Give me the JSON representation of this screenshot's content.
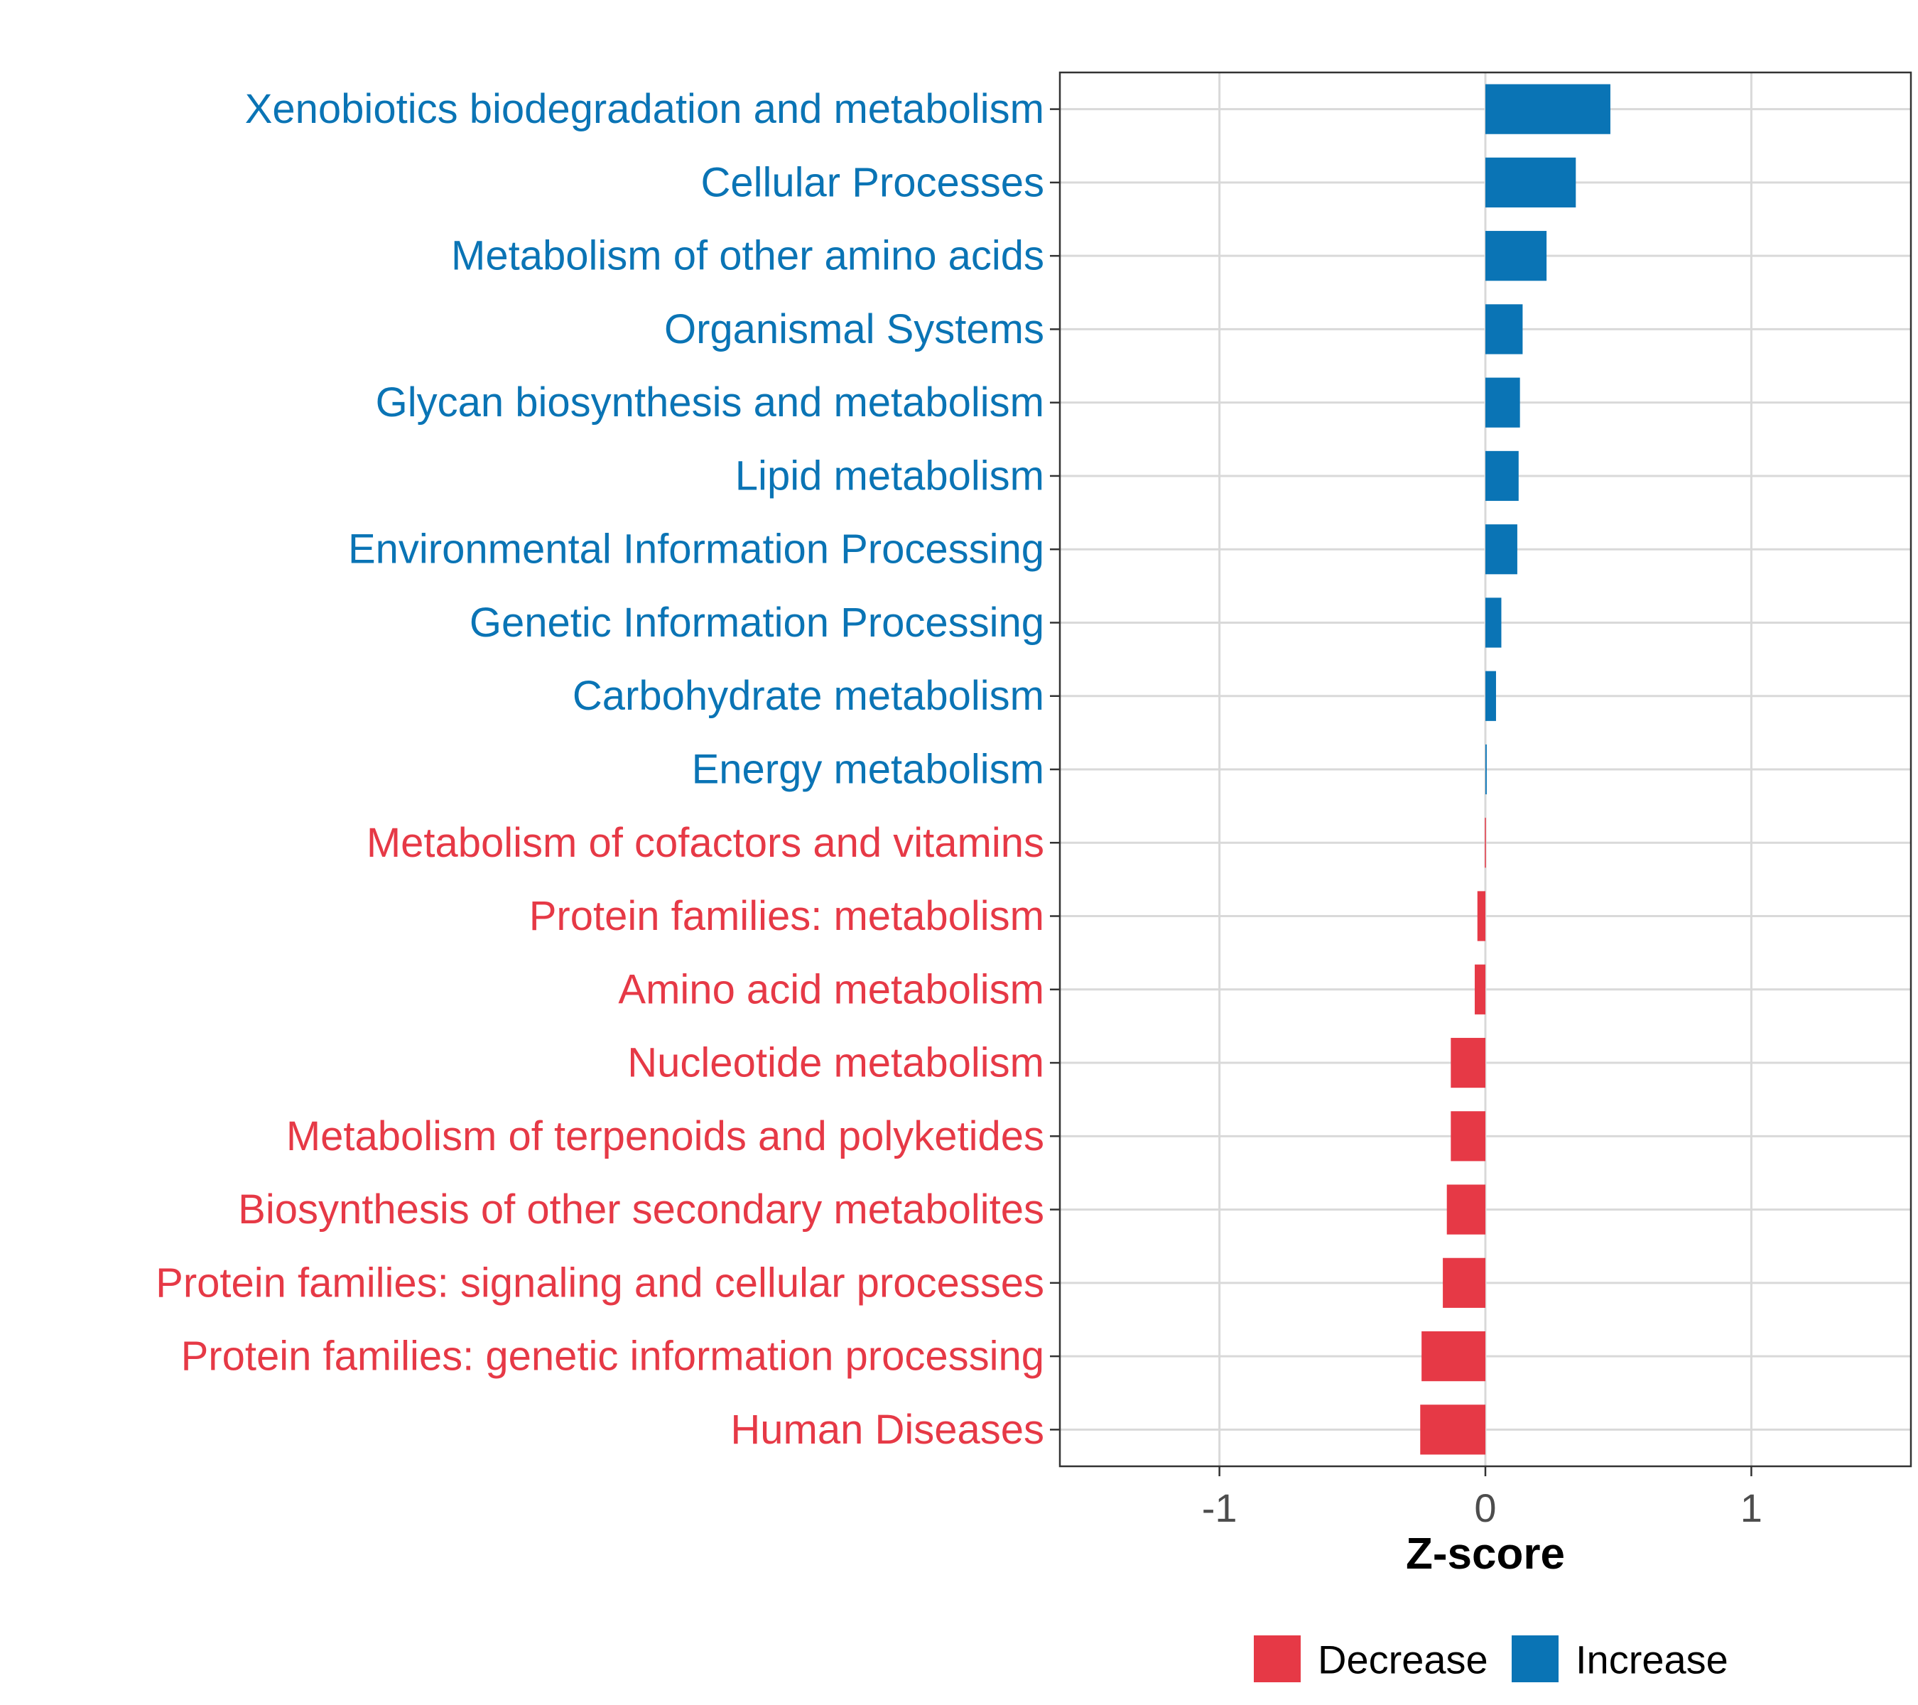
{
  "chart_data": {
    "type": "bar",
    "orientation": "horizontal",
    "categories": [
      "Xenobiotics biodegradation and metabolism",
      "Cellular Processes",
      "Metabolism of other amino acids",
      "Organismal Systems",
      "Glycan biosynthesis and metabolism",
      "Lipid metabolism",
      "Environmental Information Processing",
      "Genetic Information Processing",
      "Carbohydrate metabolism",
      "Energy metabolism",
      "Metabolism of cofactors and vitamins",
      "Protein families: metabolism",
      "Amino acid metabolism",
      "Nucleotide metabolism",
      "Metabolism of terpenoids and polyketides",
      "Biosynthesis of other secondary metabolites",
      "Protein families: signaling and cellular processes",
      "Protein families: genetic information processing",
      "Human Diseases"
    ],
    "values": [
      0.47,
      0.34,
      0.23,
      0.14,
      0.13,
      0.125,
      0.12,
      0.06,
      0.04,
      0.005,
      -0.002,
      -0.03,
      -0.04,
      -0.13,
      -0.13,
      -0.145,
      -0.16,
      -0.24,
      -0.245
    ],
    "groups": [
      "Increase",
      "Increase",
      "Increase",
      "Increase",
      "Increase",
      "Increase",
      "Increase",
      "Increase",
      "Increase",
      "Increase",
      "Decrease",
      "Decrease",
      "Decrease",
      "Decrease",
      "Decrease",
      "Decrease",
      "Decrease",
      "Decrease",
      "Decrease"
    ],
    "xlabel": "Z-score",
    "ylabel": "",
    "xlim": [
      -1.6,
      1.6
    ],
    "xticks": [
      -1,
      0,
      1
    ],
    "xtick_labels": [
      "-1",
      "0",
      "1"
    ],
    "grid": true,
    "legend": {
      "placement": "bottom",
      "entries": [
        {
          "label": "Decrease",
          "color": "#e63946"
        },
        {
          "label": "Increase",
          "color": "#0a74b5"
        }
      ]
    },
    "colors": {
      "Decrease": "#e63946",
      "Increase": "#0a74b5"
    }
  }
}
